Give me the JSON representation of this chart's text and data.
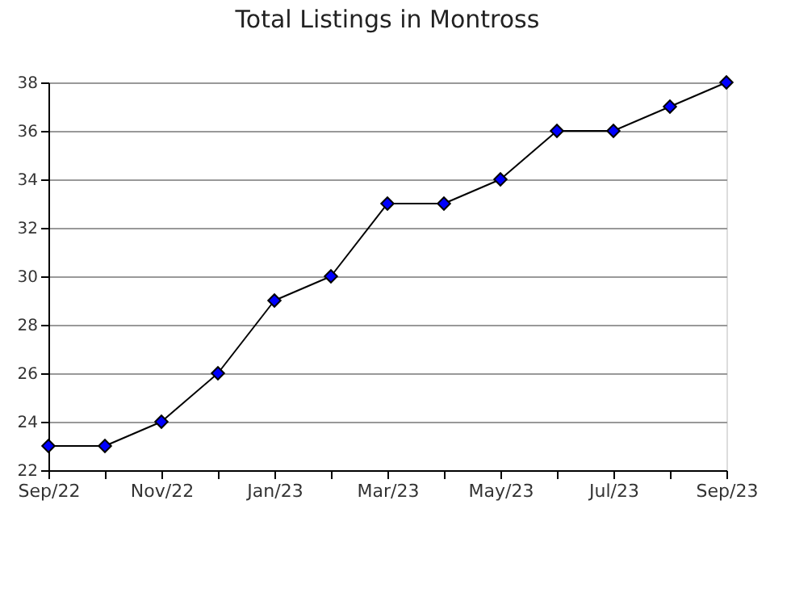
{
  "chart_data": {
    "type": "line",
    "title": "Total Listings in Montross",
    "categories": [
      "Sep/22",
      null,
      "Nov/22",
      null,
      "Jan/23",
      null,
      "Mar/23",
      null,
      "May/23",
      null,
      "Jul/23",
      null,
      "Sep/23"
    ],
    "series": [
      {
        "color": "#0000ff",
        "values": [
          23,
          23,
          24,
          26,
          29,
          30,
          33,
          33,
          34,
          36,
          36,
          37,
          38
        ]
      }
    ],
    "ylim": [
      22,
      38
    ],
    "yticks": [
      22,
      24,
      26,
      28,
      30,
      32,
      34,
      36,
      38
    ],
    "grid": "y",
    "marker": "diamond",
    "line_style": "solid"
  }
}
